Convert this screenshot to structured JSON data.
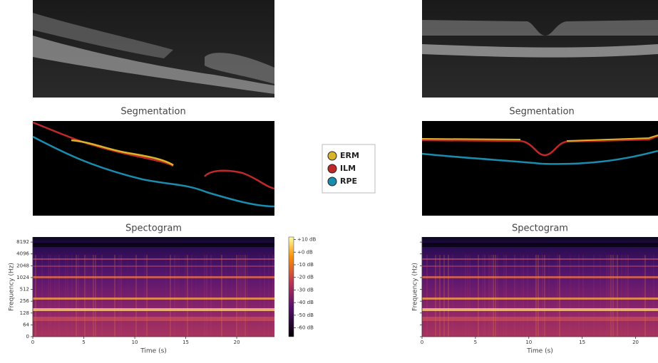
{
  "segmentation_titles": [
    "Segmentation",
    "Segmentation"
  ],
  "legend": [
    {
      "name": "ERM",
      "color": "#d9b42a"
    },
    {
      "name": "ILM",
      "color": "#c0282a"
    },
    {
      "name": "RPE",
      "color": "#1a8cae"
    }
  ],
  "chart_data": [
    {
      "type": "spectrogram",
      "title": "Spectogram",
      "xlabel": "Time (s)",
      "ylabel": "Frequency (Hz)",
      "xlim": [
        0,
        23.7
      ],
      "ylim": [
        0,
        11025
      ],
      "yscale": "symlog",
      "linthresh": 64,
      "xticks": [
        0,
        5,
        10,
        15,
        20
      ],
      "yticks": [
        0,
        64,
        128,
        256,
        512,
        1024,
        2048,
        4096,
        8192
      ],
      "ytick_labels": true,
      "colorbar": {
        "clim": [
          -67,
          12
        ],
        "ticks": [
          {
            "value": 10,
            "label": "+10 dB"
          },
          {
            "value": 0,
            "label": "+0 dB"
          },
          {
            "value": -10,
            "label": "-10 dB"
          },
          {
            "value": -20,
            "label": "-20 dB"
          },
          {
            "value": -30,
            "label": "-30 dB"
          },
          {
            "value": -40,
            "label": "-40 dB"
          },
          {
            "value": -50,
            "label": "-50 dB"
          },
          {
            "value": -60,
            "label": "-60 dB"
          }
        ]
      }
    },
    {
      "type": "spectrogram",
      "title": "Spectogram",
      "xlabel": "Time (s)",
      "ylabel": "Frequency (Hz)",
      "xlim": [
        0,
        22.1
      ],
      "ylim": [
        0,
        11025
      ],
      "yscale": "symlog",
      "linthresh": 64,
      "xticks": [
        0,
        5,
        10,
        15,
        20
      ],
      "yticks": [
        0,
        64,
        128,
        256,
        512,
        1024,
        2048,
        4096,
        8192
      ],
      "ytick_labels": false
    }
  ]
}
